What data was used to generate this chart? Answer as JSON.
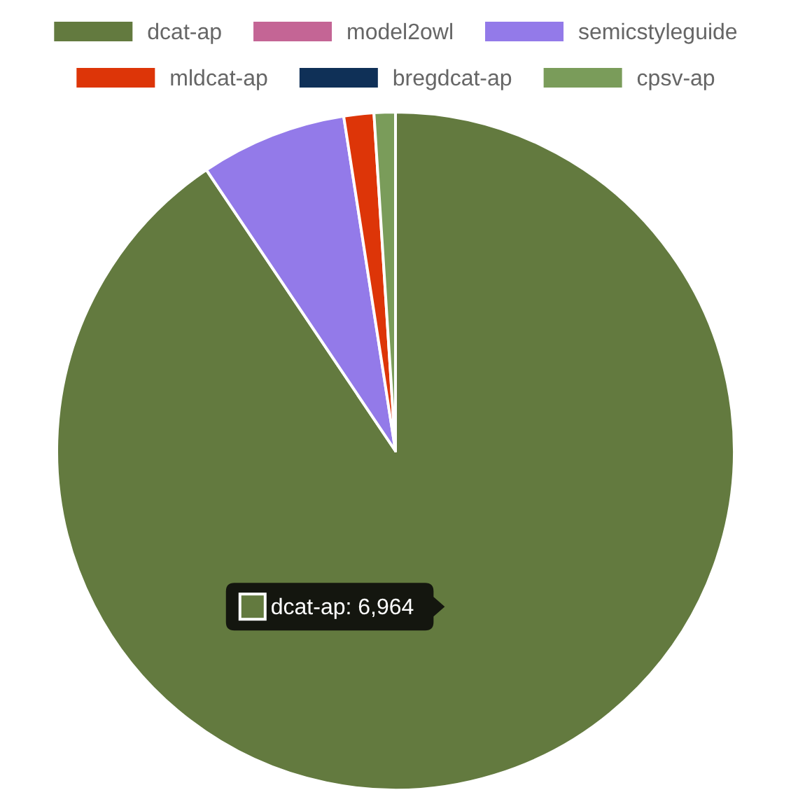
{
  "chart_data": {
    "type": "pie",
    "categories": [
      "dcat-ap",
      "model2owl",
      "semicstyleguide",
      "mldcat-ap",
      "bregdcat-ap",
      "cpsv-ap"
    ],
    "values": [
      6964,
      0,
      537,
      110,
      0,
      78
    ],
    "colors": [
      "#637a3f",
      "#c46595",
      "#937ae9",
      "#dd3508",
      "#0f3057",
      "#7a9c5a"
    ],
    "value_labels": [
      "dcat-ap: 6,964",
      null,
      null,
      null,
      null,
      null
    ],
    "legend": "top"
  }
}
